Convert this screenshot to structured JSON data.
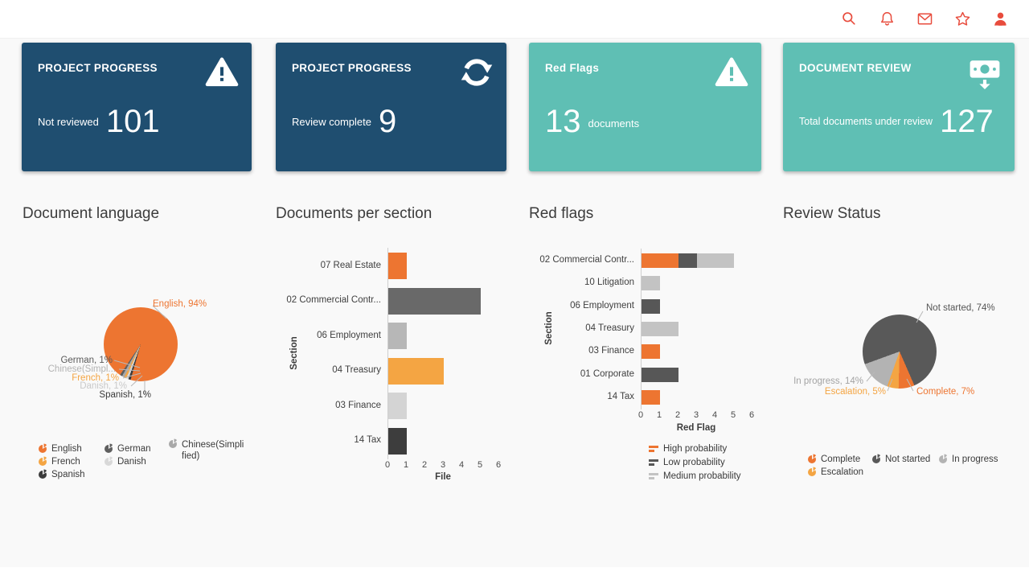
{
  "topbar": {
    "icons": [
      "search",
      "notifications",
      "mail",
      "favorites",
      "account"
    ]
  },
  "colors": {
    "navy": "#1f4e70",
    "teal": "#5fbfb4",
    "accent_red": "#e84c3d",
    "orange": "#ed7531",
    "amber": "#f4a543",
    "dark_gray": "#595959",
    "light_gray": "#c3c3c3"
  },
  "cards": [
    {
      "title": "PROJECT PROGRESS",
      "icon": "warning",
      "label": "Not reviewed",
      "value": "101"
    },
    {
      "title": "PROJECT PROGRESS",
      "icon": "refresh",
      "label": "Review complete",
      "value": "9"
    },
    {
      "title": "Red Flags",
      "icon": "warning",
      "label": "documents",
      "value": "13"
    },
    {
      "title": "DOCUMENT REVIEW",
      "icon": "cash",
      "label": "Total documents under review",
      "value": "127"
    }
  ],
  "chart_data": [
    {
      "type": "pie",
      "title": "Document language",
      "start_angle_deg": 214,
      "slices": [
        {
          "label": "English",
          "value": 94,
          "color": "#ed7531"
        },
        {
          "label": "Spanish",
          "value": 1,
          "color": "#3b3b3b"
        },
        {
          "label": "Danish",
          "value": 1,
          "color": "#d8d8d8"
        },
        {
          "label": "French",
          "value": 1,
          "color": "#f4a543"
        },
        {
          "label": "Chinese(Simplified)",
          "value": 1,
          "color": "#a8a8a8"
        },
        {
          "label": "German",
          "value": 1,
          "color": "#5f5f5f"
        }
      ],
      "callouts": [
        {
          "text": "English, 94%",
          "color": "#ed7531"
        },
        {
          "text": "German, 1%",
          "color": "#595959"
        },
        {
          "text": "Chinese(Simpl...",
          "color": "#b3b3b3"
        },
        {
          "text": "French, 1%",
          "color": "#f4a543"
        },
        {
          "text": "Danish, 1%",
          "color": "#c9c9c9"
        },
        {
          "text": "Spanish, 1%",
          "color": "#3b3b3b"
        }
      ],
      "legend": [
        "English",
        "German",
        "Chinese(Simplified)",
        "French",
        "Danish",
        "Spanish"
      ]
    },
    {
      "type": "bar",
      "title": "Documents per section",
      "xlabel": "File",
      "ylabel": "Section",
      "categories": [
        "07 Real Estate",
        "02 Commercial Contr...",
        "06 Employment",
        "04 Treasury",
        "03 Finance",
        "14 Tax"
      ],
      "values": [
        1,
        5,
        1,
        3,
        1,
        1
      ],
      "colors": [
        "#ed7531",
        "#696969",
        "#b7b7b7",
        "#f4a543",
        "#d4d4d4",
        "#3d3d3d"
      ],
      "xlim": [
        0,
        6
      ],
      "xticks": [
        0,
        1,
        2,
        3,
        4,
        5,
        6
      ]
    },
    {
      "type": "stacked_bar",
      "title": "Red flags",
      "xlabel": "Red Flag",
      "ylabel": "Section",
      "categories": [
        "02 Commercial Contr...",
        "10 Litigation",
        "06 Employment",
        "04 Treasury",
        "03 Finance",
        "01 Corporate",
        "14 Tax"
      ],
      "series": [
        {
          "name": "High probability",
          "color": "#ed7531",
          "values": [
            2,
            0,
            0,
            0,
            1,
            0,
            1
          ]
        },
        {
          "name": "Low probability",
          "color": "#575757",
          "values": [
            1,
            0,
            1,
            0,
            0,
            2,
            0
          ]
        },
        {
          "name": "Medium probability",
          "color": "#c3c3c3",
          "values": [
            2,
            1,
            0,
            2,
            0,
            0,
            0
          ]
        }
      ],
      "xlim": [
        0,
        6
      ],
      "xticks": [
        0,
        1,
        2,
        3,
        4,
        5,
        6
      ],
      "legend": [
        "High probability",
        "Low probability",
        "Medium probability"
      ]
    },
    {
      "type": "pie",
      "title": "Review Status",
      "start_angle_deg": 250,
      "slices": [
        {
          "label": "Not started",
          "value": 74,
          "color": "#595959"
        },
        {
          "label": "Complete",
          "value": 7,
          "color": "#ed7531"
        },
        {
          "label": "Escalation",
          "value": 5,
          "color": "#f4a543"
        },
        {
          "label": "In progress",
          "value": 14,
          "color": "#b3b3b3"
        }
      ],
      "callouts": [
        {
          "text": "Not started, 74%",
          "color": "#555555"
        },
        {
          "text": "In progress, 14%",
          "color": "#a3a3a3"
        },
        {
          "text": "Escalation, 5%",
          "color": "#f4a543"
        },
        {
          "text": "Complete, 7%",
          "color": "#ed7531"
        }
      ],
      "legend": [
        "Complete",
        "Not started",
        "In progress",
        "Escalation"
      ]
    }
  ]
}
